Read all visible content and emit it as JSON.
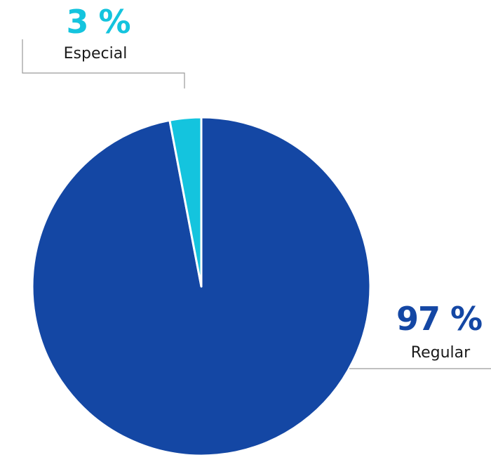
{
  "chart_data": {
    "type": "pie",
    "categories": [
      "Especial",
      "Regular"
    ],
    "values": [
      3,
      97
    ],
    "value_labels": [
      "3 %",
      "97 %"
    ],
    "colors": [
      "#14c4de",
      "#1447a4"
    ],
    "title": "",
    "start": "12 o'clock, clockwise from Regular; Especial is the thin slice left of 12 o'clock"
  }
}
